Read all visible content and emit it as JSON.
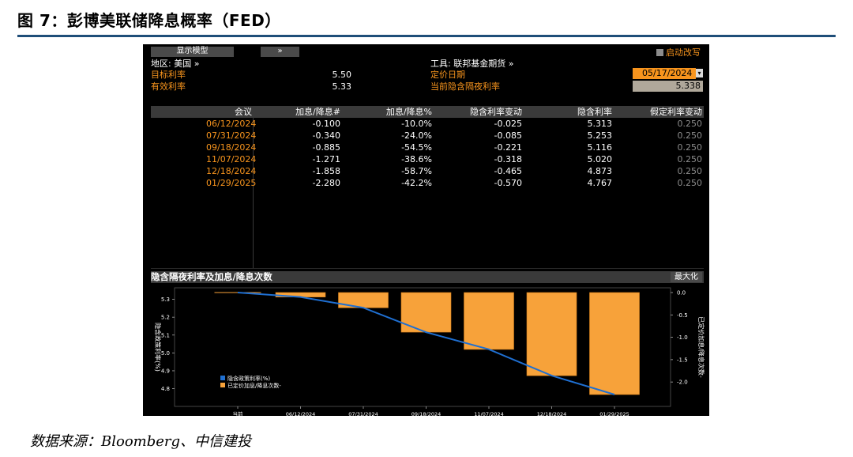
{
  "figure": {
    "title": "图 7：彭博美联储降息概率（FED）",
    "source": "数据来源：Bloomberg、中信建投"
  },
  "terminal": {
    "display_model_btn": "显示模型",
    "expand_btn": "»",
    "region_label": "地区: 美国 »",
    "instrument_label": "工具: 联邦基金期货 »",
    "auto_update_label": "启动改写",
    "target_rate_label": "目标利率",
    "target_rate_value": "5.50",
    "effective_rate_label": "有效利率",
    "effective_rate_value": "5.33",
    "pricing_date_label": "定价日期",
    "pricing_date_value": "05/17/2024",
    "implied_overnight_label": "当前隐含隔夜利率",
    "implied_overnight_value": "5.338"
  },
  "table": {
    "headers": [
      "会议",
      "加息/降息#",
      "加息/降息%",
      "隐含利率变动",
      "隐含利率",
      "假定利率变动"
    ],
    "rows": [
      [
        "06/12/2024",
        "-0.100",
        "-10.0%",
        "-0.025",
        "5.313",
        "0.250"
      ],
      [
        "07/31/2024",
        "-0.340",
        "-24.0%",
        "-0.085",
        "5.253",
        "0.250"
      ],
      [
        "09/18/2024",
        "-0.885",
        "-54.5%",
        "-0.221",
        "5.116",
        "0.250"
      ],
      [
        "11/07/2024",
        "-1.271",
        "-38.6%",
        "-0.318",
        "5.020",
        "0.250"
      ],
      [
        "12/18/2024",
        "-1.858",
        "-58.7%",
        "-0.465",
        "4.873",
        "0.250"
      ],
      [
        "01/29/2025",
        "-2.280",
        "-42.2%",
        "-0.570",
        "4.767",
        "0.250"
      ]
    ]
  },
  "chart_panel": {
    "title": "隐含隔夜利率及加息/降息次数",
    "max_btn": "最大化"
  },
  "chart_data": {
    "type": "bar",
    "categories": [
      "当前",
      "06/12/2024",
      "07/31/2024",
      "09/18/2024",
      "11/07/2024",
      "12/18/2024",
      "01/29/2025"
    ],
    "series": [
      {
        "name": "隐含政策利率(%)",
        "type": "line",
        "axis": "left",
        "color": "#1f6fd1",
        "values": [
          5.338,
          5.313,
          5.253,
          5.116,
          5.02,
          4.873,
          4.767
        ]
      },
      {
        "name": "已定价加息/降息次数-",
        "type": "bar",
        "axis": "right",
        "color": "#f7a23a",
        "values": [
          0,
          -0.1,
          -0.34,
          -0.885,
          -1.271,
          -1.858,
          -2.28
        ]
      }
    ],
    "ylabel_left": "隐含政策利率(%)",
    "ylabel_right": "已定价加息/降息次数-",
    "yticks_left": [
      "5.3",
      "5.2",
      "5.1",
      "5.0",
      "4.9",
      "4.8"
    ],
    "yticks_right": [
      "0.0",
      "-0.5",
      "-1.0",
      "-1.5",
      "-2.0"
    ],
    "ylim_left": [
      4.767,
      5.338
    ],
    "ylim_right": [
      -2.28,
      0.0
    ],
    "legend_position": "bottom-left"
  }
}
